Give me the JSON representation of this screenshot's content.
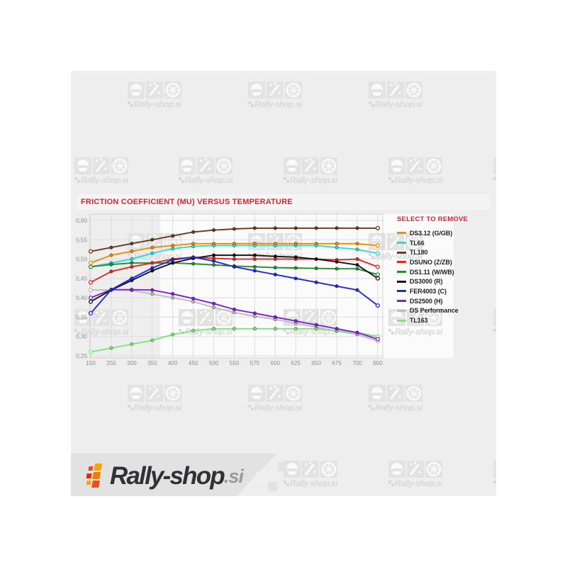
{
  "colors": {
    "accent_red": "#da2430",
    "content_bg": "#eeeeee",
    "plot_bg": "#fbfbfb",
    "grid": "#dddddd",
    "axis_text": "#8f8f8f",
    "watermark": "#d9d9d9",
    "footer_band": "#e2e2e2",
    "logo_dark": "#2f3134",
    "logo_gray": "#98999c"
  },
  "watermark": {
    "text": "Rally-shop.si"
  },
  "footer_logo": {
    "brand": "Rally-shop",
    "tld": ".si"
  },
  "chart_data": {
    "type": "line",
    "title": "FRICTION COEFFICIENT (MU) VERSUS TEMPERATURE",
    "legend_header": "SELECT TO REMOVE",
    "legend_position": "right",
    "grid": true,
    "xlabel": "",
    "ylabel": "",
    "categories": [
      "150",
      "250",
      "300",
      "350",
      "400",
      "450",
      "500",
      "550",
      "575",
      "600",
      "625",
      "650",
      "675",
      "700",
      "800"
    ],
    "y_ticks": [
      0.25,
      0.3,
      0.35,
      0.4,
      0.45,
      0.5,
      0.55,
      0.6
    ],
    "y_tick_labels": [
      "0,25",
      "0,30",
      "0,35",
      "0,40",
      "0,45",
      "0,50",
      "0,55",
      "0,60"
    ],
    "ylim": [
      0.25,
      0.6
    ],
    "series": [
      {
        "name": "DS3.12 (G/GB)",
        "color": "#f08c00",
        "values": [
          0.49,
          0.51,
          0.52,
          0.53,
          0.535,
          0.54,
          0.54,
          0.54,
          0.54,
          0.54,
          0.54,
          0.54,
          0.54,
          0.54,
          0.535
        ]
      },
      {
        "name": "TL66",
        "color": "#2bd9d9",
        "values": [
          0.48,
          0.49,
          0.5,
          0.515,
          0.527,
          0.533,
          0.535,
          0.535,
          0.535,
          0.535,
          0.535,
          0.535,
          0.53,
          0.525,
          0.515
        ]
      },
      {
        "name": "TL180",
        "color": "#6e3b1d",
        "values": [
          0.52,
          0.53,
          0.54,
          0.55,
          0.56,
          0.57,
          0.575,
          0.578,
          0.58,
          0.58,
          0.58,
          0.58,
          0.58,
          0.58,
          0.58
        ]
      },
      {
        "name": "DSUNO (Z/ZB)",
        "color": "#e02a23",
        "values": [
          0.44,
          0.468,
          0.48,
          0.49,
          0.5,
          0.505,
          0.502,
          0.5,
          0.5,
          0.5,
          0.5,
          0.5,
          0.498,
          0.5,
          0.48
        ]
      },
      {
        "name": "DS1.11 (W/WB)",
        "color": "#2a8b35",
        "values": [
          0.48,
          0.486,
          0.49,
          0.49,
          0.49,
          0.488,
          0.485,
          0.482,
          0.48,
          0.478,
          0.477,
          0.476,
          0.475,
          0.475,
          0.46
        ]
      },
      {
        "name": "DS3000 (R)",
        "color": "#161616",
        "values": [
          0.39,
          0.42,
          0.445,
          0.47,
          0.49,
          0.502,
          0.51,
          0.51,
          0.51,
          0.507,
          0.505,
          0.5,
          0.493,
          0.485,
          0.45
        ]
      },
      {
        "name": "FER4003 (C)",
        "color": "#2328dc",
        "values": [
          0.36,
          0.421,
          0.45,
          0.477,
          0.498,
          0.505,
          0.495,
          0.48,
          0.47,
          0.46,
          0.45,
          0.44,
          0.43,
          0.42,
          0.38
        ]
      },
      {
        "name": "DS2500 (H)",
        "color": "#8220d8",
        "values": [
          0.4,
          0.421,
          0.421,
          0.42,
          0.41,
          0.398,
          0.385,
          0.37,
          0.36,
          0.35,
          0.34,
          0.33,
          0.32,
          0.31,
          0.293
        ]
      },
      {
        "name": "DS Performance",
        "color": "#bdbdbd",
        "values": [
          0.42,
          0.42,
          0.419,
          0.41,
          0.4,
          0.39,
          0.375,
          0.362,
          0.352,
          0.344,
          0.334,
          0.324,
          0.314,
          0.305,
          0.288
        ]
      },
      {
        "name": "TL163",
        "color": "#7ce87c",
        "values": [
          0.26,
          0.27,
          0.28,
          0.29,
          0.305,
          0.315,
          0.32,
          0.32,
          0.32,
          0.32,
          0.32,
          0.32,
          0.315,
          0.31,
          0.3
        ]
      }
    ]
  }
}
